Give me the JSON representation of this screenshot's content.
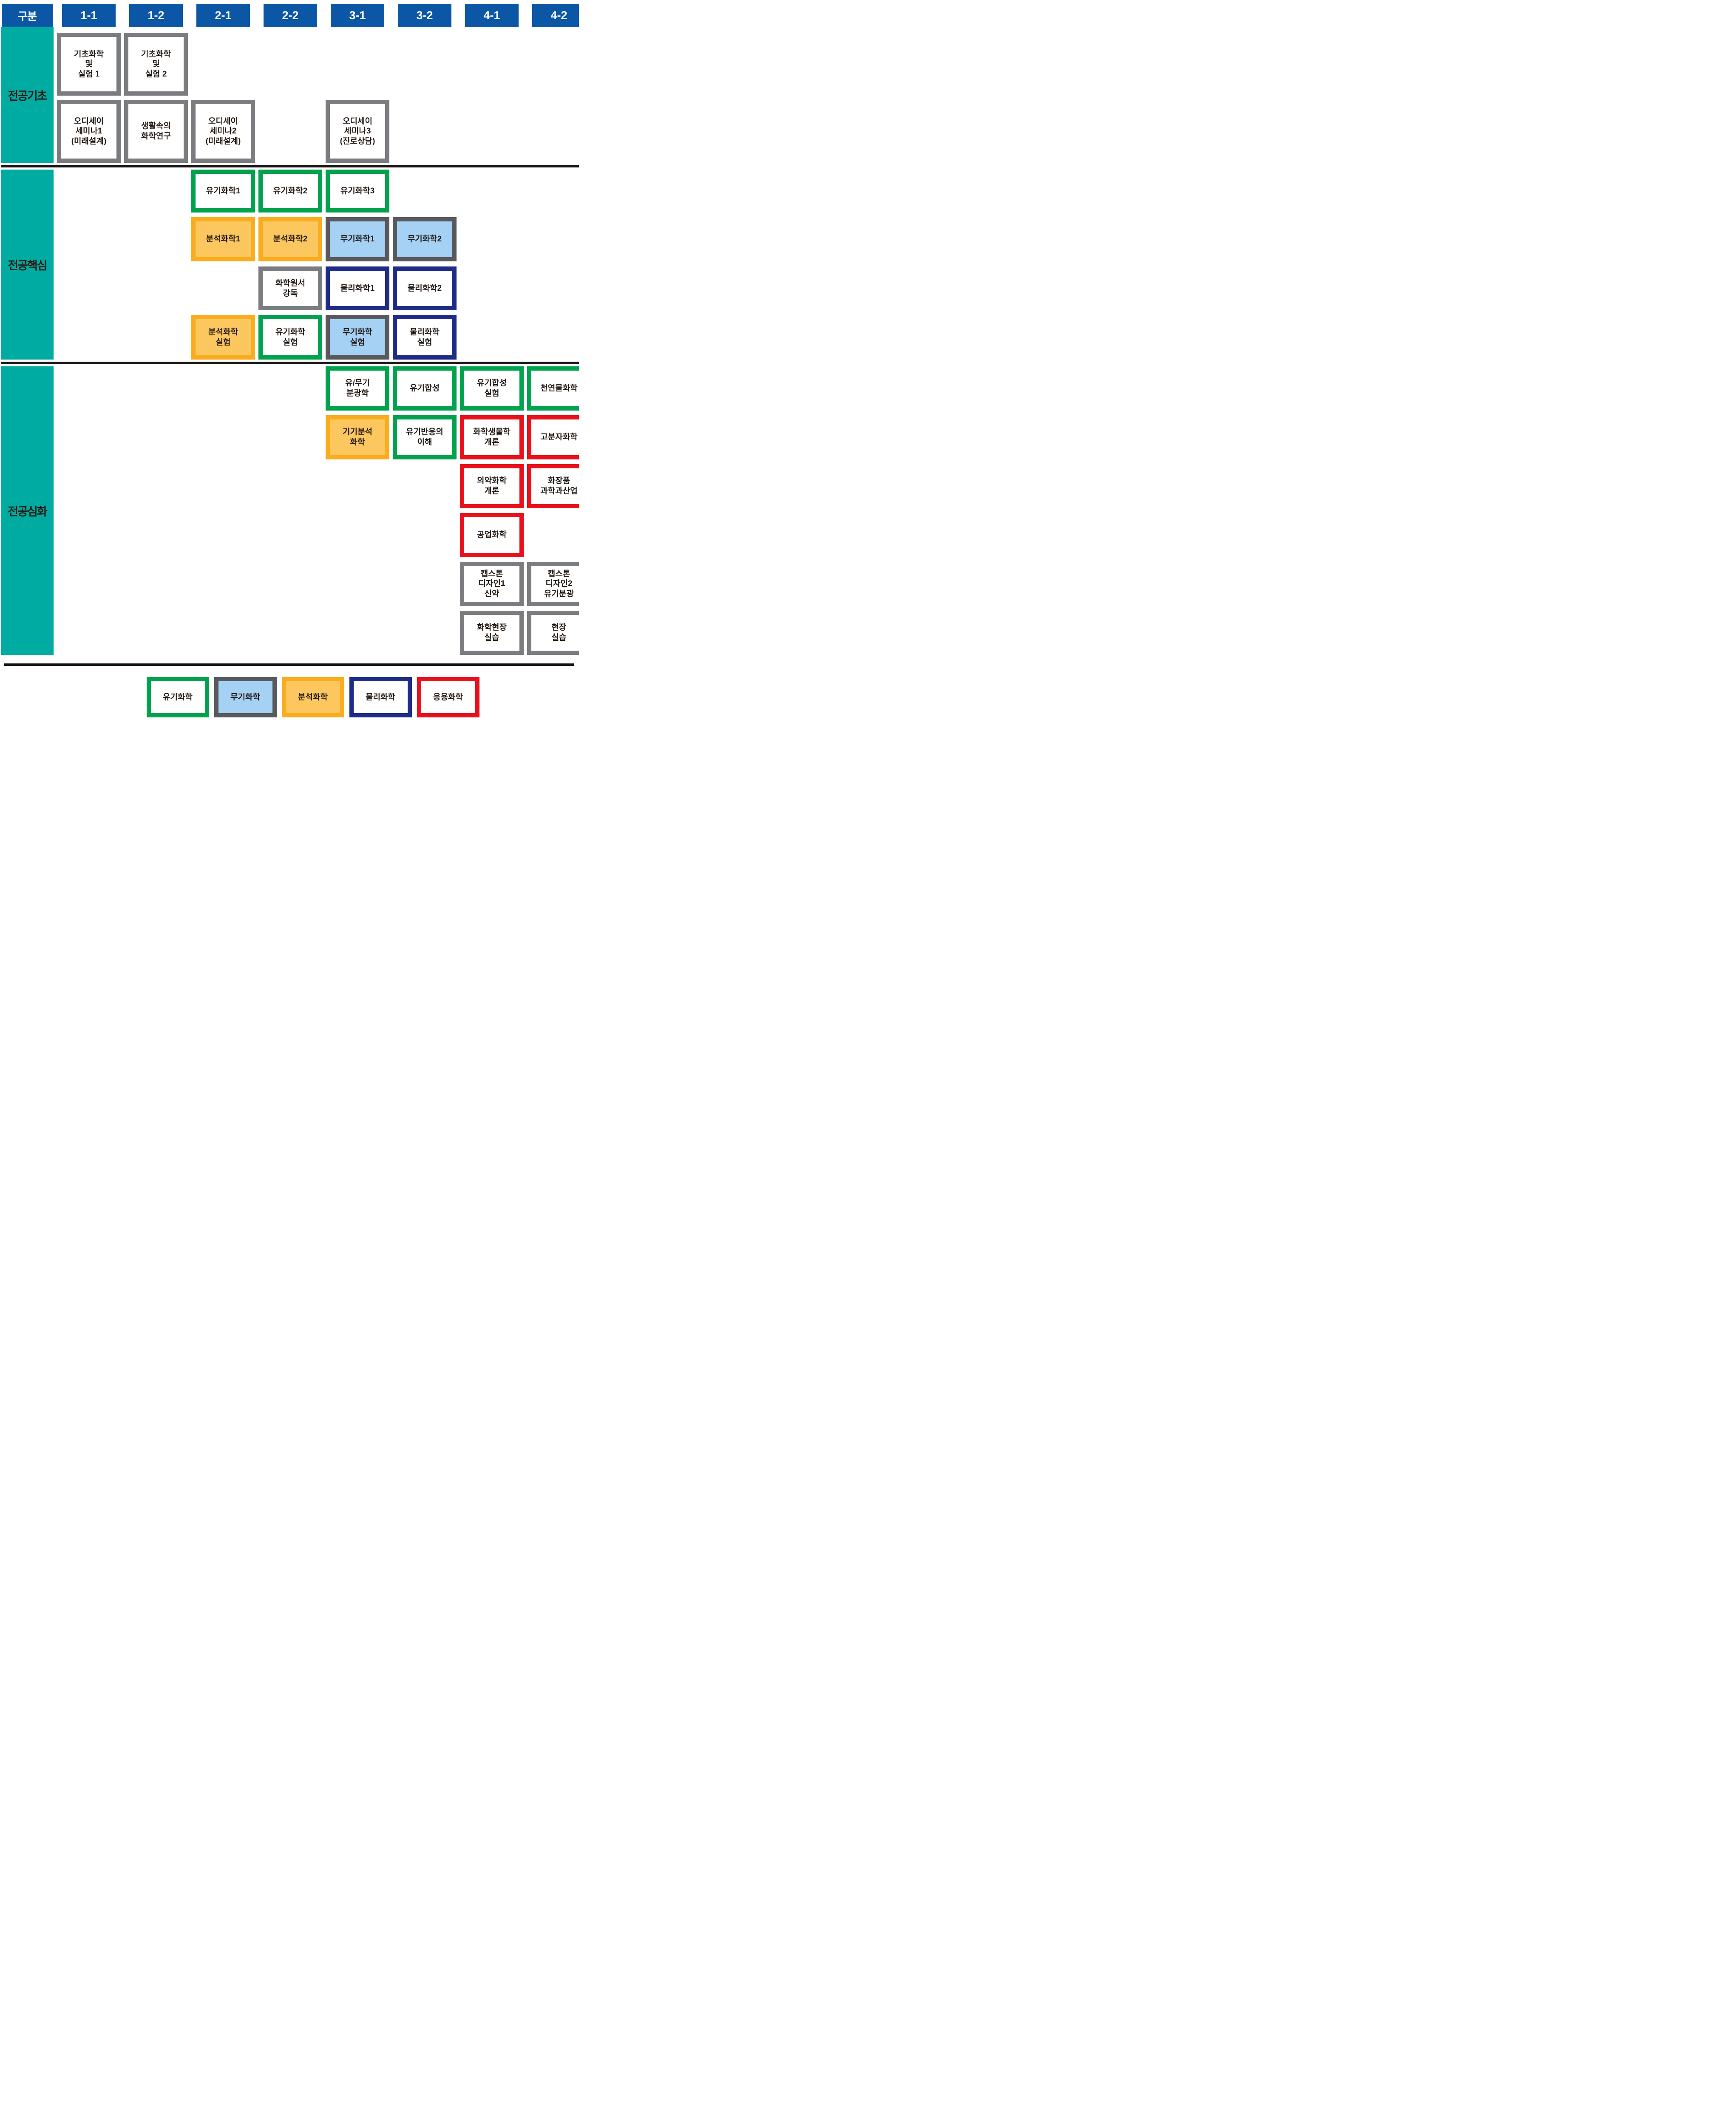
{
  "header": {
    "category_label": "구분",
    "semesters": [
      "1-1",
      "1-2",
      "2-1",
      "2-2",
      "3-1",
      "3-2",
      "4-1",
      "4-2"
    ]
  },
  "sections": [
    {
      "label": "전공기초",
      "courses": [
        {
          "label": "기초화학\n및\n실험 1",
          "cat": "general",
          "semester": "1-1"
        },
        {
          "label": "기초화학\n및\n실험 2",
          "cat": "general",
          "semester": "1-2"
        },
        {
          "label": "오디세이\n세미나1\n(미래설계)",
          "cat": "general",
          "semester": "1-1"
        },
        {
          "label": "생활속의\n화학연구",
          "cat": "general",
          "semester": "1-2"
        },
        {
          "label": "오디세이\n세미나2\n(미래설계)",
          "cat": "general",
          "semester": "2-1"
        },
        {
          "label": "오디세이\n세미나3\n(진로상담)",
          "cat": "general",
          "semester": "3-1"
        }
      ]
    },
    {
      "label": "전공핵심",
      "courses": [
        {
          "label": "유기화학1",
          "cat": "organic",
          "semester": "2-1"
        },
        {
          "label": "유기화학2",
          "cat": "organic",
          "semester": "2-2"
        },
        {
          "label": "유기화학3",
          "cat": "organic",
          "semester": "3-1"
        },
        {
          "label": "분석화학1",
          "cat": "analytical",
          "semester": "2-1"
        },
        {
          "label": "분석화학2",
          "cat": "analytical",
          "semester": "2-2"
        },
        {
          "label": "무기화학1",
          "cat": "inorganic",
          "semester": "3-1"
        },
        {
          "label": "무기화학2",
          "cat": "inorganic",
          "semester": "3-2"
        },
        {
          "label": "화학원서\n강독",
          "cat": "general",
          "semester": "2-2"
        },
        {
          "label": "물리화학1",
          "cat": "physical",
          "semester": "3-1"
        },
        {
          "label": "물리화학2",
          "cat": "physical",
          "semester": "3-2"
        },
        {
          "label": "분석화학\n실험",
          "cat": "analytical",
          "semester": "2-1"
        },
        {
          "label": "유기화학\n실험",
          "cat": "organic",
          "semester": "2-2"
        },
        {
          "label": "무기화학\n실험",
          "cat": "inorganic",
          "semester": "3-1"
        },
        {
          "label": "물리화학\n실험",
          "cat": "physical",
          "semester": "3-2"
        }
      ]
    },
    {
      "label": "전공심화",
      "courses": [
        {
          "label": "유/무기\n분광학",
          "cat": "organic",
          "semester": "3-1"
        },
        {
          "label": "유기합성",
          "cat": "organic",
          "semester": "3-2"
        },
        {
          "label": "유기합성\n실험",
          "cat": "organic",
          "semester": "4-1"
        },
        {
          "label": "천연물화학",
          "cat": "organic",
          "semester": "4-2"
        },
        {
          "label": "기기분석\n화학",
          "cat": "analytical",
          "semester": "3-1"
        },
        {
          "label": "유기반응의\n이해",
          "cat": "organic",
          "semester": "3-2"
        },
        {
          "label": "화학생물학\n개론",
          "cat": "applied",
          "semester": "4-1"
        },
        {
          "label": "고분자화학",
          "cat": "applied",
          "semester": "4-2"
        },
        {
          "label": "의약화학\n개론",
          "cat": "applied",
          "semester": "4-1"
        },
        {
          "label": "화장품\n과학과산업",
          "cat": "applied",
          "semester": "4-2"
        },
        {
          "label": "공업화학",
          "cat": "applied",
          "semester": "4-1"
        },
        {
          "label": "캡스톤\n디자인1\n신약",
          "cat": "general",
          "semester": "4-1"
        },
        {
          "label": "캡스톤\n디자인2\n유기분광",
          "cat": "general",
          "semester": "4-2"
        },
        {
          "label": "화학현장\n실습",
          "cat": "general",
          "semester": "4-1"
        },
        {
          "label": "현장\n실습",
          "cat": "general",
          "semester": "4-2"
        }
      ]
    }
  ],
  "legend": [
    {
      "label": "유기화학",
      "cat": "organic"
    },
    {
      "label": "무기화학",
      "cat": "inorganic"
    },
    {
      "label": "분석화학",
      "cat": "analytical"
    },
    {
      "label": "물리화학",
      "cat": "physical"
    },
    {
      "label": "응용화학",
      "cat": "applied"
    }
  ],
  "colors": {
    "header_bg": "#0b57a5",
    "header_text": "#ffffff",
    "section_band_bg": "#00aba2",
    "box_text": "#241a14",
    "divider": "#191314",
    "general_border": "#7b7c7f",
    "organic_border": "#00a24d",
    "analytical_border": "#f7ad1d",
    "analytical_fill": "#fdc75f",
    "inorganic_border": "#58595c",
    "inorganic_fill": "#a5d1f5",
    "physical_border": "#1e2b87",
    "applied_border": "#e8101b"
  }
}
